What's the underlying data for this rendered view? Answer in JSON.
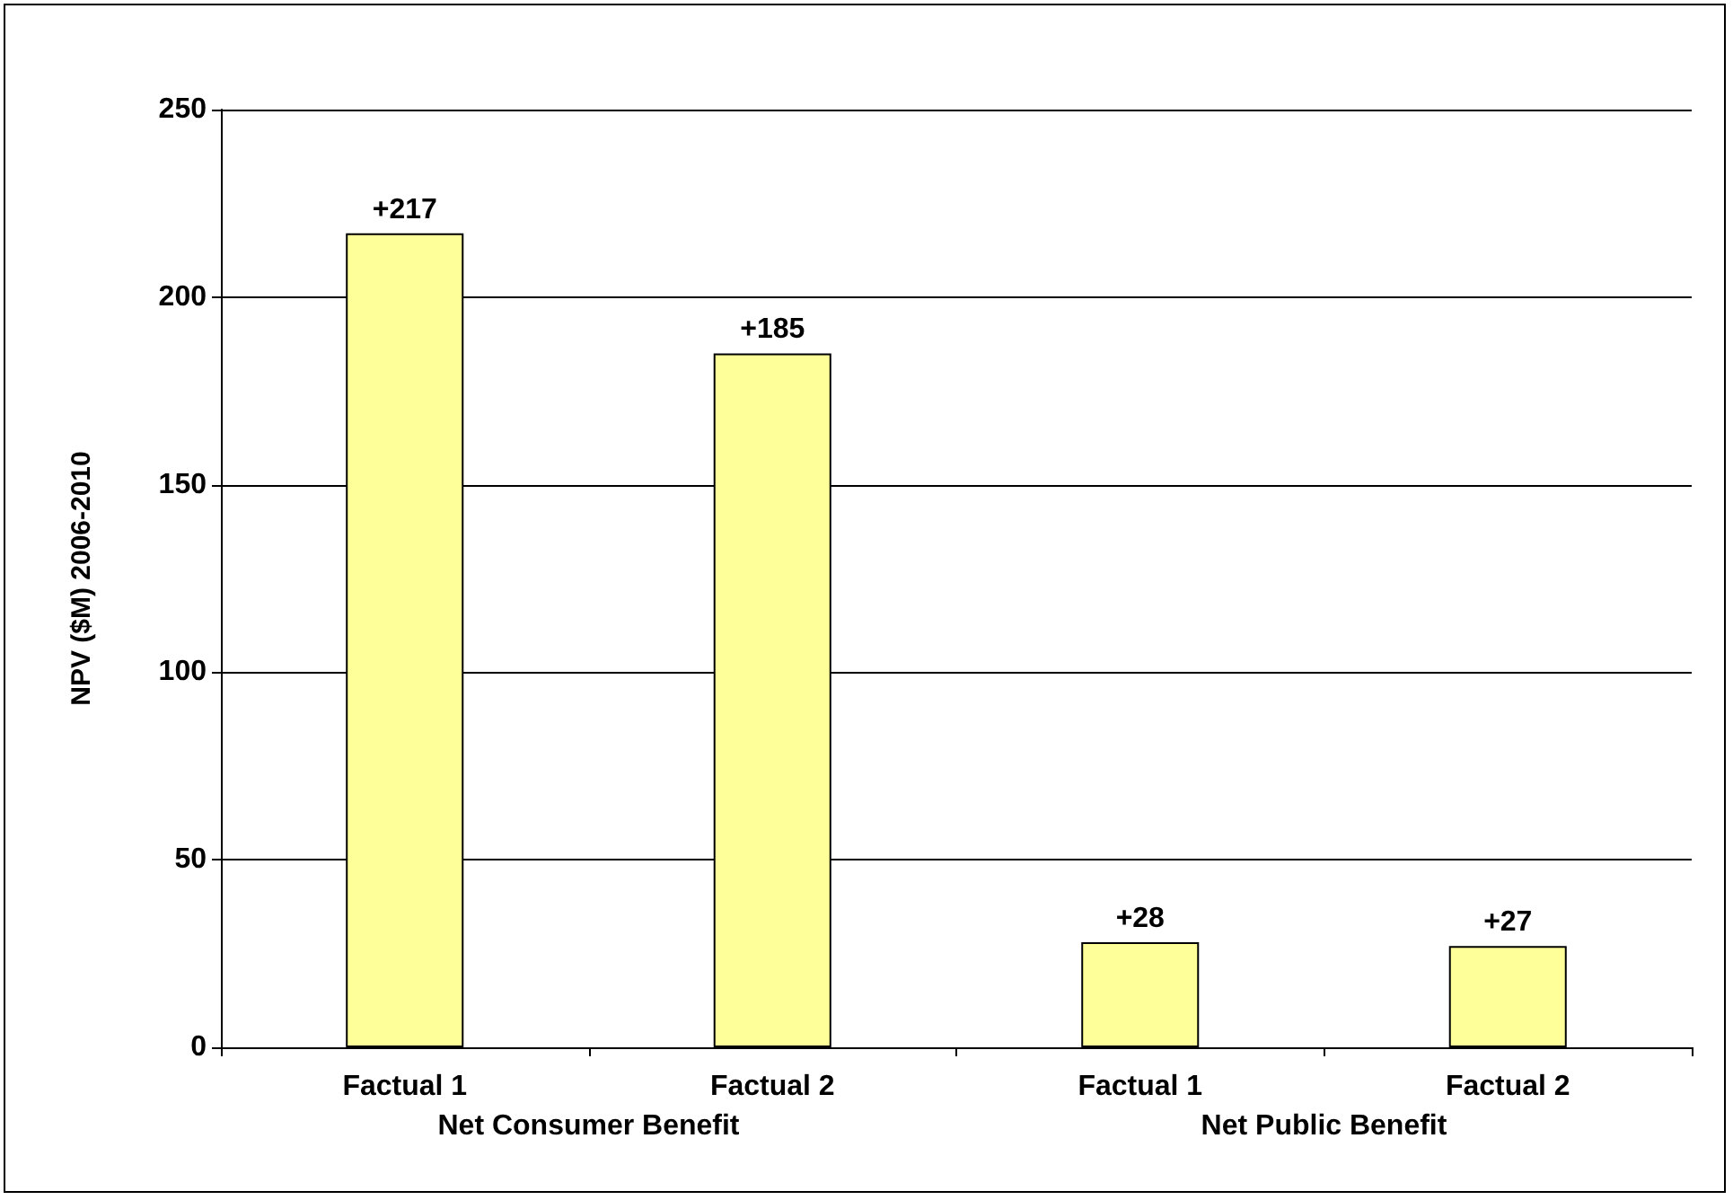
{
  "chart_data": {
    "type": "bar",
    "ylabel": "NPV ($M) 2006-2010",
    "categories": [
      "Factual 1",
      "Factual 2",
      "Factual 1",
      "Factual 2"
    ],
    "values": [
      217,
      185,
      28,
      27
    ],
    "value_labels": [
      "+217",
      "+185",
      "+28",
      "+27"
    ],
    "color": "#ffff99",
    "ylim": [
      0,
      250
    ],
    "yticks": [
      0,
      50,
      100,
      150,
      200,
      250
    ],
    "grid": "y",
    "annotations": [
      "Net Consumer Benefit",
      "Net Public Benefit"
    ]
  }
}
